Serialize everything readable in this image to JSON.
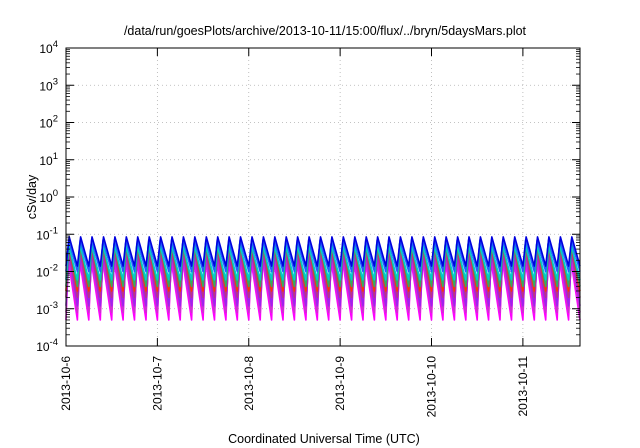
{
  "chart_data": {
    "type": "line",
    "title": "/data/run/goesPlots/archive/2013-10-11/15:00/flux/../bryn/5daysMars.plot",
    "xlabel": "Coordinated Universal Time (UTC)",
    "ylabel": "cSv/day",
    "x_tick_labels": [
      "2013-10-6",
      "2013-10-7",
      "2013-10-8",
      "2013-10-9",
      "2013-10-10",
      "2013-10-11"
    ],
    "xlim": [
      "2013-10-06T00:00",
      "2013-10-11T15:00"
    ],
    "y_scale": "log",
    "ylim": [
      0.0001,
      10000
    ],
    "y_tick_exponents": [
      -4,
      -3,
      -2,
      -1,
      0,
      1,
      2,
      3,
      4
    ],
    "grid": true,
    "series_period_hours": 3,
    "series": [
      {
        "color": "#ff00ff",
        "peak": 0.02,
        "trough": 0.0005
      },
      {
        "color": "#cc33cc",
        "peak": 0.025,
        "trough": 0.0008
      },
      {
        "color": "#a020f0",
        "peak": 0.03,
        "trough": 0.0012
      },
      {
        "color": "#bb3388",
        "peak": 0.045,
        "trough": 0.002
      },
      {
        "color": "#ff3300",
        "peak": 0.06,
        "trough": 0.003
      },
      {
        "color": "#33aa66",
        "peak": 0.05,
        "trough": 0.004
      },
      {
        "color": "#00cccc",
        "peak": 0.055,
        "trough": 0.006
      },
      {
        "color": "#2060ff",
        "peak": 0.07,
        "trough": 0.01
      },
      {
        "color": "#0000dd",
        "peak": 0.085,
        "trough": 0.014
      }
    ]
  }
}
